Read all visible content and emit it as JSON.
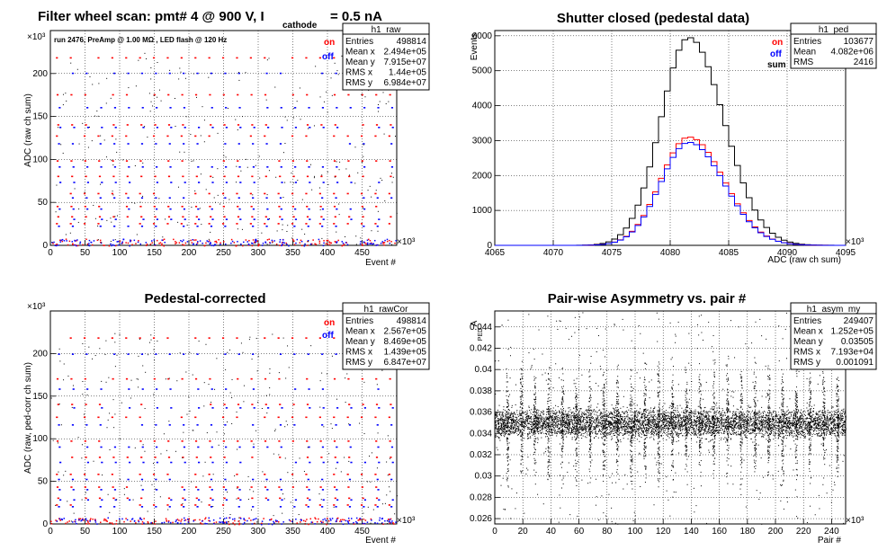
{
  "panels": {
    "raw": {
      "title": "Filter wheel scan: pmt#   4 @   900 V, I",
      "title_sub": "cathode",
      "title_tail": "= 0.5 nA",
      "annotation": "run 2476, PreAmp @ 1.00 MΩ , LED flash @  120 Hz",
      "ylabel": "ADC (raw ch sum)",
      "xlabel": "Event #",
      "yexp": "×10³",
      "xexp": "×10³",
      "legend": {
        "on": "on",
        "off": "off"
      },
      "stats": {
        "name": "h1_raw",
        "rows": [
          [
            "Entries",
            "498814"
          ],
          [
            "Mean x",
            "2.494e+05"
          ],
          [
            "Mean y",
            "7.915e+07"
          ],
          [
            "RMS x",
            "1.44e+05"
          ],
          [
            "RMS y",
            "6.984e+07"
          ]
        ]
      }
    },
    "ped": {
      "title": "Shutter closed (pedestal data)",
      "ylabel": "Events",
      "xlabel": "ADC (raw ch sum)",
      "xexp": "×10³",
      "legend": {
        "on": "on",
        "off": "off",
        "sum": "sum"
      },
      "stats": {
        "name": "h1_ped",
        "rows": [
          [
            "Entries",
            "103677"
          ],
          [
            "Mean",
            "4.082e+06"
          ],
          [
            "RMS",
            "2416"
          ]
        ]
      }
    },
    "cor": {
      "title": "Pedestal-corrected",
      "ylabel": "ADC (raw, ped-corr ch sum)",
      "xlabel": "Event #",
      "yexp": "×10³",
      "xexp": "×10³",
      "legend": {
        "on": "on",
        "off": "off"
      },
      "stats": {
        "name": "h1_rawCor",
        "rows": [
          [
            "Entries",
            "498814"
          ],
          [
            "Mean x",
            "2.567e+05"
          ],
          [
            "Mean y",
            "8.469e+05"
          ],
          [
            "RMS x",
            "1.439e+05"
          ],
          [
            "RMS y",
            "6.847e+07"
          ]
        ]
      }
    },
    "asym": {
      "title": "Pair-wise Asymmetry vs. pair #",
      "ylabel": "A",
      "ylabel_sub": "PED",
      "xlabel": "Pair #",
      "xexp": "×10³",
      "stats": {
        "name": "h1_asym_my",
        "rows": [
          [
            "Entries",
            "249407"
          ],
          [
            "Mean x",
            "1.252e+05"
          ],
          [
            "Mean y",
            "0.03505"
          ],
          [
            "RMS x",
            "7.193e+04"
          ],
          [
            "RMS y",
            "0.001091"
          ]
        ]
      }
    }
  },
  "colors": {
    "on": "#ff0000",
    "off": "#0000ff",
    "sum": "#000000"
  },
  "chart_data": [
    {
      "type": "scatter",
      "id": "raw",
      "title": "Filter wheel scan: pmt#   4 @   900 V, I cathode = 0.5 nA",
      "xlabel": "Event #",
      "ylabel": "ADC (raw ch sum)",
      "xlim": [
        0,
        500
      ],
      "ylim": [
        0,
        250
      ],
      "xticks": [
        "0",
        "50",
        "100",
        "150",
        "200",
        "250",
        "300",
        "350",
        "400",
        "450"
      ],
      "yticks": [
        "0",
        "50",
        "100",
        "150",
        "200"
      ],
      "series": [
        {
          "name": "on",
          "x_period": 20,
          "levels": [
            218,
            175,
            140,
            127,
            98,
            80,
            60,
            45,
            33,
            25
          ]
        },
        {
          "name": "off",
          "x_period": 20,
          "levels": [
            200,
            160,
            137,
            118,
            91,
            73,
            55,
            42,
            30,
            22
          ]
        }
      ]
    },
    {
      "type": "line",
      "id": "ped",
      "title": "Shutter closed (pedestal data)",
      "xlabel": "ADC (raw ch sum)",
      "ylabel": "Events",
      "xlim": [
        4065,
        4095
      ],
      "ylim": [
        0,
        6150
      ],
      "xticks": [
        "4065",
        "4070",
        "4075",
        "4080",
        "4085",
        "4090",
        "4095"
      ],
      "yticks": [
        "0",
        "1000",
        "2000",
        "3000",
        "4000",
        "5000",
        "6000"
      ],
      "series": [
        {
          "name": "sum",
          "peak_x": 4081.6,
          "peak_y": 5950,
          "sigma": 2.4
        },
        {
          "name": "on",
          "peak_x": 4081.6,
          "peak_y": 3100,
          "sigma": 2.4
        },
        {
          "name": "off",
          "peak_x": 4081.6,
          "peak_y": 2950,
          "sigma": 2.4
        }
      ]
    },
    {
      "type": "scatter",
      "id": "cor",
      "title": "Pedestal-corrected",
      "xlabel": "Event #",
      "ylabel": "ADC (raw, ped-corr ch sum)",
      "xlim": [
        0,
        500
      ],
      "ylim": [
        0,
        250
      ],
      "xticks": [
        "0",
        "50",
        "100",
        "150",
        "200",
        "250",
        "300",
        "350",
        "400",
        "450"
      ],
      "yticks": [
        "0",
        "50",
        "100",
        "150",
        "200"
      ],
      "series": [
        {
          "name": "on",
          "x_period": 20,
          "levels": [
            218,
            170,
            140,
            125,
            97,
            78,
            58,
            43,
            30,
            22
          ]
        },
        {
          "name": "off",
          "x_period": 20,
          "levels": [
            199,
            158,
            136,
            116,
            90,
            72,
            52,
            40,
            28,
            20
          ]
        }
      ]
    },
    {
      "type": "scatter",
      "id": "asym",
      "title": "Pair-wise Asymmetry vs. pair #",
      "xlabel": "Pair #",
      "ylabel": "A PED",
      "xlim": [
        0,
        250
      ],
      "ylim": [
        0.0255,
        0.0455
      ],
      "xticks": [
        "0",
        "20",
        "40",
        "60",
        "80",
        "100",
        "120",
        "140",
        "160",
        "180",
        "200",
        "220",
        "240"
      ],
      "yticks": [
        "0.026",
        "0.028",
        "0.03",
        "0.032",
        "0.034",
        "0.036",
        "0.038",
        "0.04",
        "0.042",
        "0.044"
      ],
      "band_center": 0.035,
      "band_halfwidth": 0.0008
    }
  ]
}
